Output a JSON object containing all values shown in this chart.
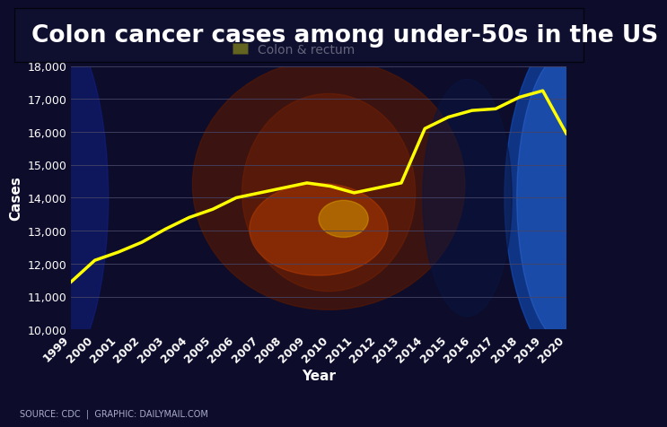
{
  "title": "Colon cancer cases among under-50s in the US",
  "xlabel": "Year",
  "ylabel": "Cases",
  "legend_label": "Colon & rectum",
  "source_text": "SOURCE: CDC  |  GRAPHIC: DAILYMAIL.COM",
  "years": [
    1999,
    2000,
    2001,
    2002,
    2003,
    2004,
    2005,
    2006,
    2007,
    2008,
    2009,
    2010,
    2011,
    2012,
    2013,
    2014,
    2015,
    2016,
    2017,
    2018,
    2019,
    2020
  ],
  "values": [
    11450,
    12100,
    12350,
    12650,
    13050,
    13400,
    13650,
    14000,
    14150,
    14300,
    14450,
    14350,
    14150,
    14300,
    14450,
    16100,
    16450,
    16650,
    16700,
    17050,
    17250,
    15950
  ],
  "line_color": "#FFFF00",
  "line_width": 2.5,
  "bg_color": "#0d0d2b",
  "plot_bg_color": "#0d0d2b",
  "grid_color": "#444466",
  "text_color": "#ffffff",
  "axis_text_color": "#ffffff",
  "ylim": [
    10000,
    18000
  ],
  "yticks": [
    10000,
    11000,
    12000,
    13000,
    14000,
    15000,
    16000,
    17000,
    18000
  ],
  "title_fontsize": 19,
  "axis_label_fontsize": 11,
  "tick_fontsize": 9,
  "source_fontsize": 7
}
